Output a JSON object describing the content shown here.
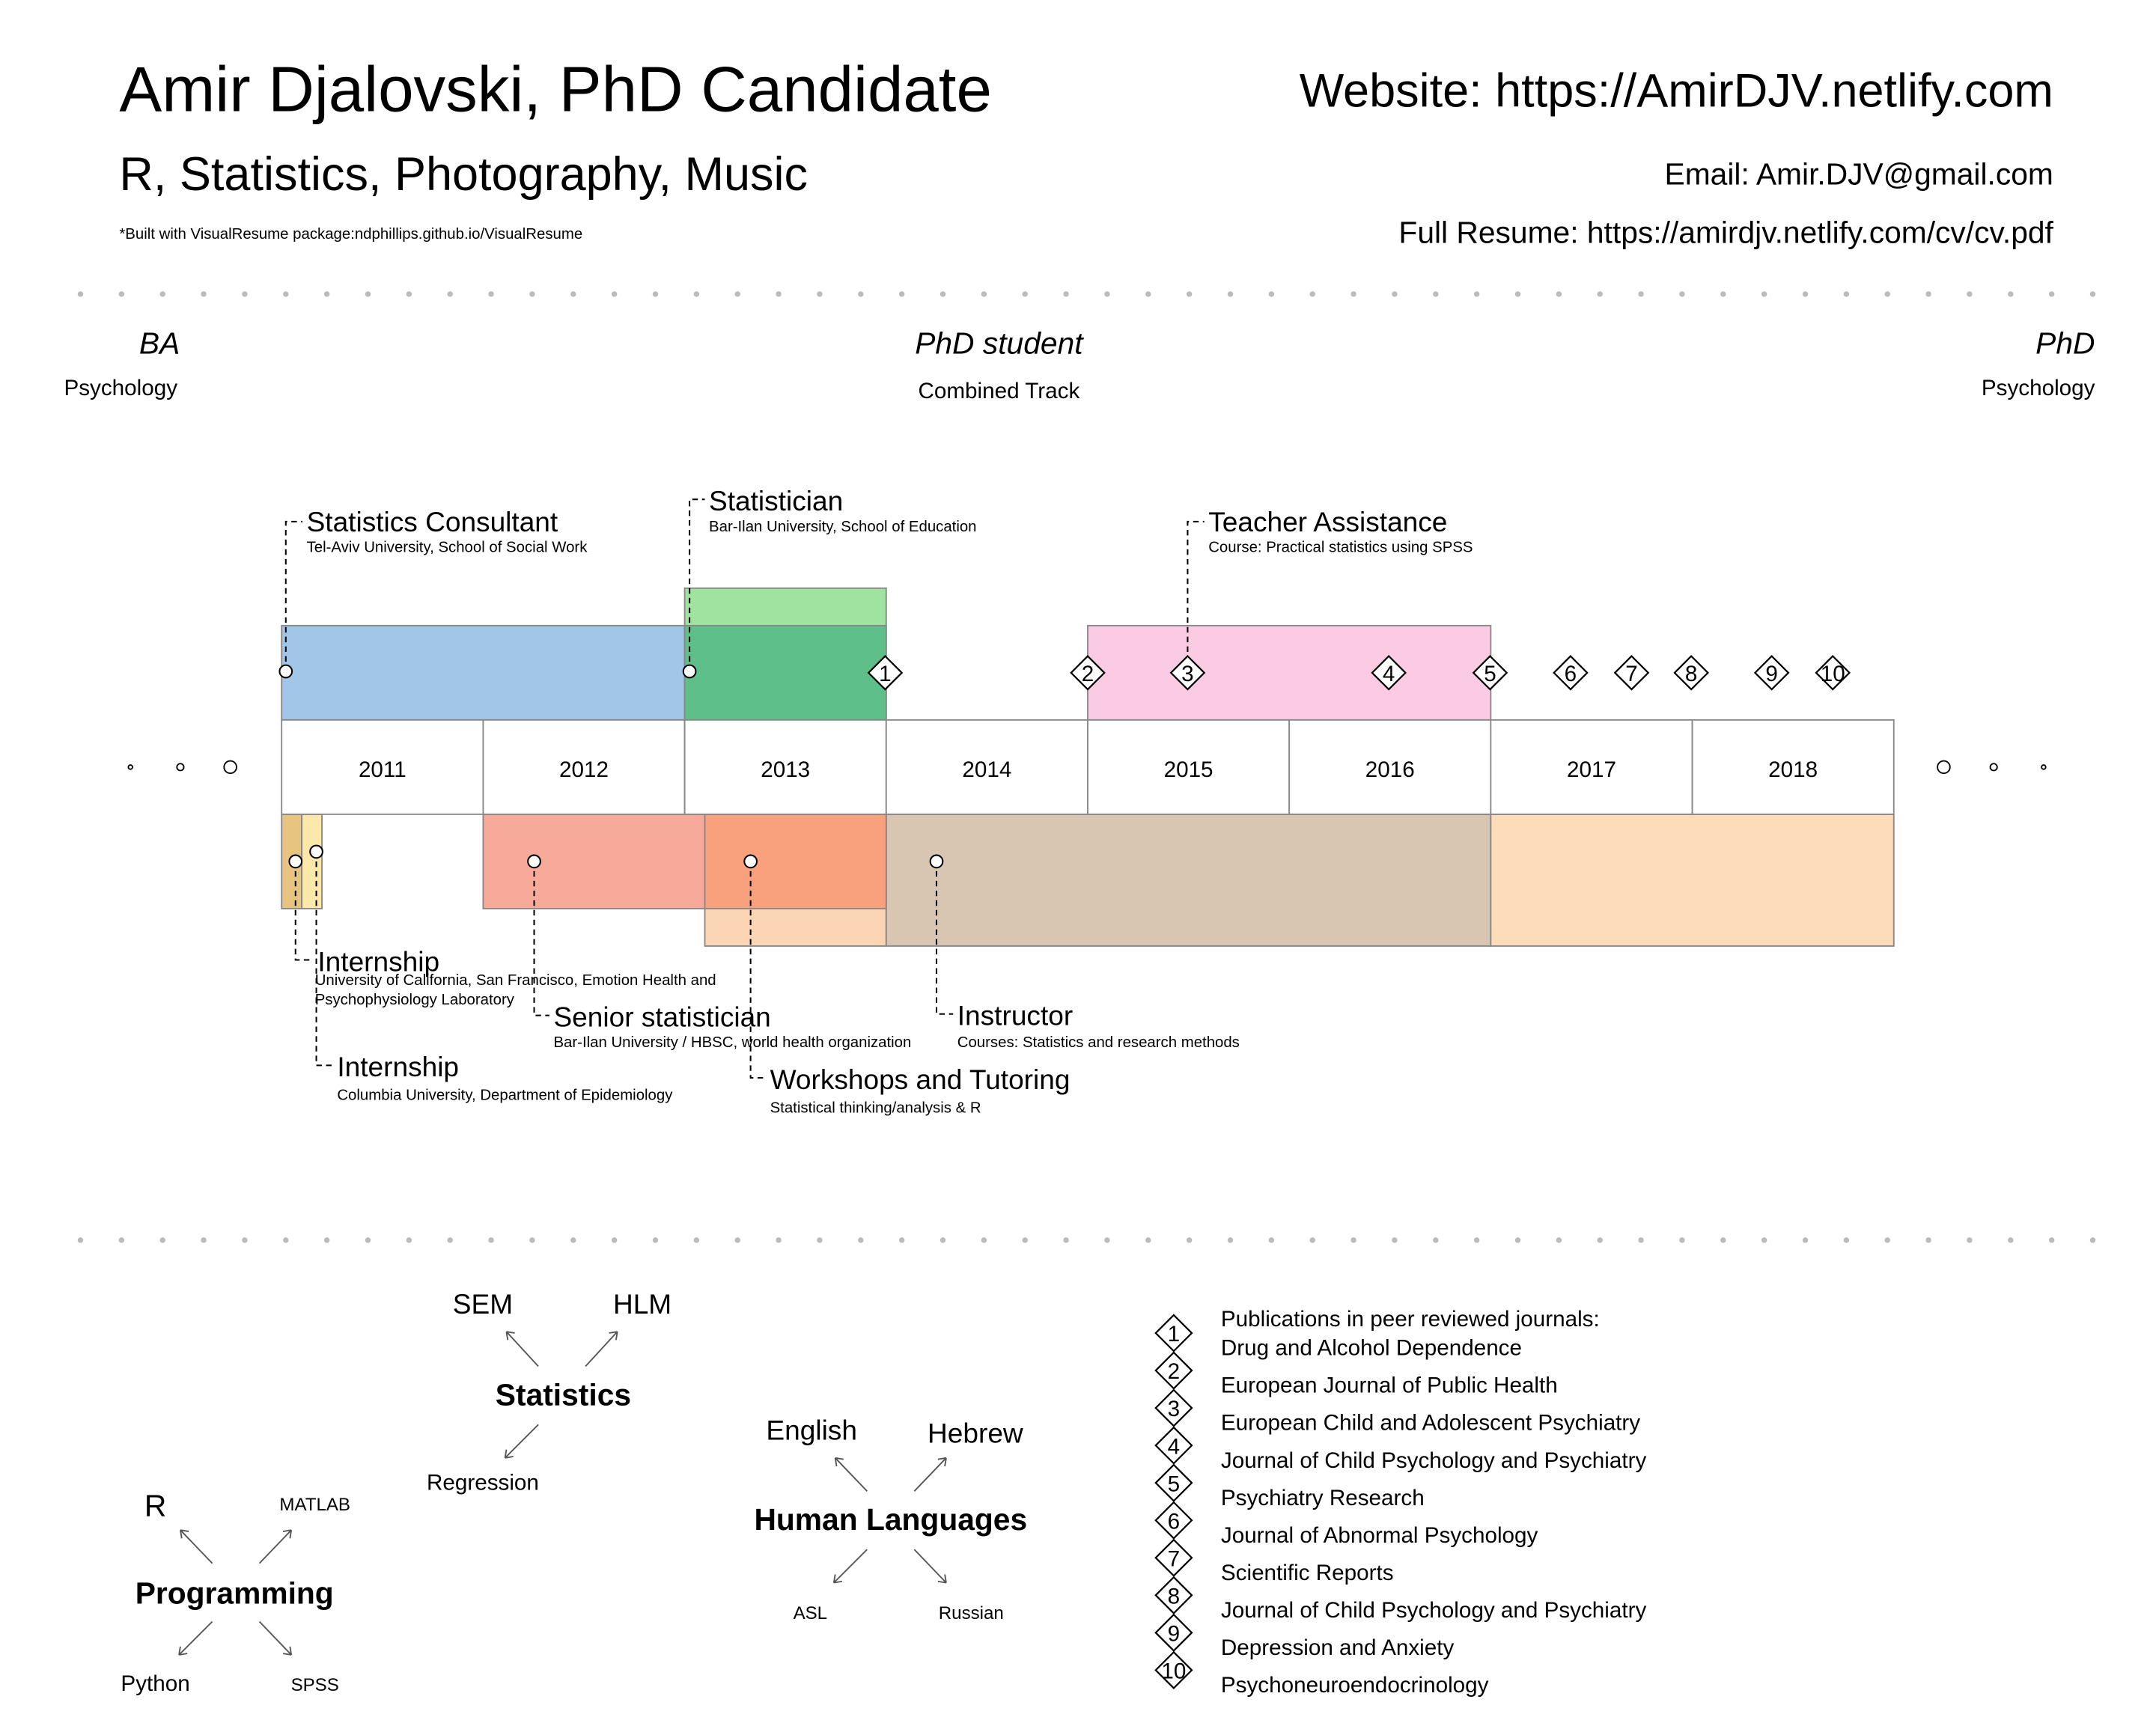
{
  "header": {
    "name": "Amir Djalovski, PhD Candidate",
    "interests": "R, Statistics, Photography, Music",
    "built_with": "*Built with VisualResume package:ndphillips.github.io/VisualResume",
    "website": "Website: https://AmirDJV.netlify.com",
    "email": "Email: Amir.DJV@gmail.com",
    "full_resume": "Full Resume: https://amirdjv.netlify.com/cv/cv.pdf"
  },
  "degrees": [
    {
      "title": "BA",
      "sub": "Psychology"
    },
    {
      "title": "PhD student",
      "sub": "Combined Track"
    },
    {
      "title": "PhD",
      "sub": "Psychology"
    }
  ],
  "timeline": {
    "years": [
      "2011",
      "2012",
      "2013",
      "2014",
      "2015",
      "2016",
      "2017",
      "2018"
    ],
    "top_jobs": [
      {
        "title": "Statistics Consultant",
        "sub": "Tel-Aviv University, School of Social Work",
        "start": 2011.0,
        "end": 2013.0,
        "color": "#9dc3e6"
      },
      {
        "title": "Statistician",
        "sub": "Bar-Ilan University, School of Education",
        "start": 2013.0,
        "end": 2014.0,
        "color": "#9be09b"
      },
      {
        "title": "Teacher Assistance",
        "sub": "Course: Practical statistics using SPSS",
        "start": 2015.0,
        "end": 2017.0,
        "color": "#fbc8e3"
      }
    ],
    "bottom_jobs": [
      {
        "title": "Internship",
        "sub": "University of California, San Francisco, Emotion Health and Psychophysiology Laboratory",
        "start": 2011.0,
        "end": 2011.1,
        "color": "#e6c27a"
      },
      {
        "title": "Internship",
        "sub": "Columbia University, Department of Epidemiology",
        "start": 2011.1,
        "end": 2011.2,
        "color": "#fde7a8"
      },
      {
        "title": "Senior statistician",
        "sub": "Bar-Ilan University / HBSC, world health organization",
        "start": 2012.0,
        "end": 2014.0,
        "color": "#f8a595"
      },
      {
        "title": "Workshops and Tutoring",
        "sub": "Statistical thinking/analysis & R",
        "start": 2013.1,
        "end": 2014.0,
        "color": "#fbd3b0"
      },
      {
        "title": "Instructor",
        "sub": "Courses: Statistics and research methods",
        "start": 2014.0,
        "end": 2017.0,
        "color": "#d6c3ae"
      },
      {
        "title": "",
        "sub": "",
        "start": 2017.0,
        "end": 2019.0,
        "color": "#fcdab5"
      }
    ],
    "publication_markers": [
      "1",
      "2",
      "3",
      "4",
      "5",
      "6",
      "7",
      "8",
      "9",
      "10"
    ]
  },
  "skills": {
    "statistics": {
      "center": "Statistics",
      "items": [
        "SEM",
        "HLM",
        "Regression"
      ]
    },
    "languages": {
      "center": "Human Languages",
      "items": [
        "English",
        "Hebrew",
        "ASL",
        "Russian"
      ]
    },
    "programming": {
      "center": "Programming",
      "items": [
        "R",
        "MATLAB",
        "Python",
        "SPSS"
      ]
    }
  },
  "publications": {
    "heading": "Publications in peer reviewed journals:",
    "items": [
      {
        "num": "1",
        "journal": "Drug and Alcohol Dependence"
      },
      {
        "num": "2",
        "journal": "European Journal of Public Health"
      },
      {
        "num": "3",
        "journal": "European Child and Adolescent Psychiatry"
      },
      {
        "num": "4",
        "journal": "Journal of Child Psychology and Psychiatry"
      },
      {
        "num": "5",
        "journal": "Psychiatry Research"
      },
      {
        "num": "6",
        "journal": "Journal of Abnormal Psychology"
      },
      {
        "num": "7",
        "journal": "Scientific Reports"
      },
      {
        "num": "8",
        "journal": "Journal of Child Psychology and Psychiatry"
      },
      {
        "num": "9",
        "journal": "Depression and Anxiety"
      },
      {
        "num": "10",
        "journal": "Psychoneuroendocrinology"
      }
    ]
  }
}
